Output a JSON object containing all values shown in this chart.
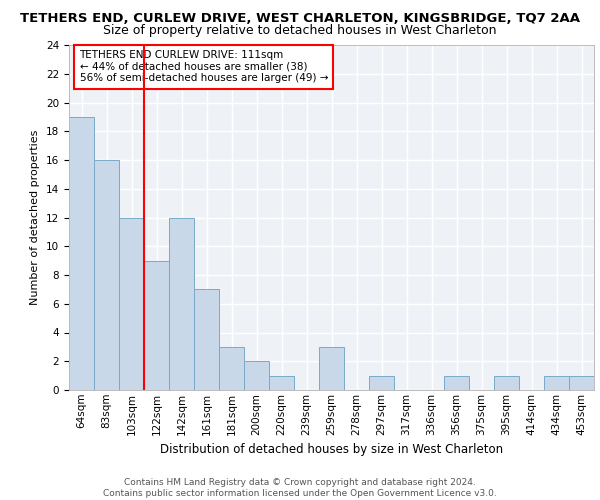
{
  "title": "TETHERS END, CURLEW DRIVE, WEST CHARLETON, KINGSBRIDGE, TQ7 2AA",
  "subtitle": "Size of property relative to detached houses in West Charleton",
  "xlabel": "Distribution of detached houses by size in West Charleton",
  "ylabel": "Number of detached properties",
  "categories": [
    "64sqm",
    "83sqm",
    "103sqm",
    "122sqm",
    "142sqm",
    "161sqm",
    "181sqm",
    "200sqm",
    "220sqm",
    "239sqm",
    "259sqm",
    "278sqm",
    "297sqm",
    "317sqm",
    "336sqm",
    "356sqm",
    "375sqm",
    "395sqm",
    "414sqm",
    "434sqm",
    "453sqm"
  ],
  "values": [
    19,
    16,
    12,
    9,
    12,
    7,
    3,
    2,
    1,
    0,
    3,
    0,
    1,
    0,
    0,
    1,
    0,
    1,
    0,
    1,
    1
  ],
  "bar_color": "#c8d8e8",
  "bar_edge_color": "#7aaac8",
  "red_line_x": 2.5,
  "annotation_title": "TETHERS END CURLEW DRIVE: 111sqm",
  "annotation_line1": "← 44% of detached houses are smaller (38)",
  "annotation_line2": "56% of semi-detached houses are larger (49) →",
  "ylim": [
    0,
    24
  ],
  "yticks": [
    0,
    2,
    4,
    6,
    8,
    10,
    12,
    14,
    16,
    18,
    20,
    22,
    24
  ],
  "background_color": "#eef2f7",
  "grid_color": "#ffffff",
  "footer_line1": "Contains HM Land Registry data © Crown copyright and database right 2024.",
  "footer_line2": "Contains public sector information licensed under the Open Government Licence v3.0.",
  "title_fontsize": 9.5,
  "subtitle_fontsize": 9,
  "ylabel_fontsize": 8,
  "xlabel_fontsize": 8.5,
  "tick_fontsize": 7.5,
  "annotation_fontsize": 7.5,
  "footer_fontsize": 6.5
}
